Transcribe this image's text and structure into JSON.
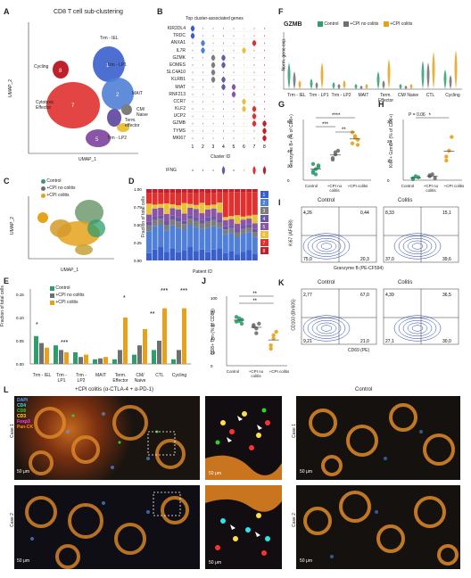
{
  "panels": {
    "A": {
      "label": "A",
      "title": "CD8 T cell sub-clustering",
      "xlabel": "UMAP_1",
      "ylabel": "UMAP_2",
      "xticks": [
        "-10",
        "0",
        "10"
      ],
      "yticks": [
        "-10",
        "0",
        "10"
      ],
      "clusters": [
        {
          "id": "1",
          "name": "Trm - IEL",
          "color": "#3a5fcd"
        },
        {
          "id": "2",
          "name": "Trm - LP1",
          "color": "#4f7fd6"
        },
        {
          "id": "3",
          "name": "MAIT",
          "color": "#7d7d7d"
        },
        {
          "id": "4",
          "name": "Term. effector",
          "color": "#6b56a8"
        },
        {
          "id": "5",
          "name": "Trm - LP2",
          "color": "#8a55a6"
        },
        {
          "id": "6",
          "name": "CM/ Naive",
          "color": "#e8c23a"
        },
        {
          "id": "7",
          "name": "Cytotoxic Effector",
          "color": "#e03030"
        },
        {
          "id": "8",
          "name": "Cycling",
          "color": "#c0202a"
        }
      ]
    },
    "B": {
      "label": "B",
      "title": "Top cluster-associated genes",
      "xlabel": "Cluster ID",
      "genes": [
        "KIR2DL4",
        "TRDC",
        "ANXA1",
        "IL7R",
        "GZMK",
        "EOMES",
        "SLC4A10",
        "KLRB1",
        "MIAT",
        "RNF213",
        "CCR7",
        "KLF2",
        "UCP2",
        "GZMB",
        "TYMS",
        "MKI67"
      ],
      "extra_gene": "IFNG",
      "cluster_ids": [
        "1",
        "2",
        "3",
        "4",
        "5",
        "6",
        "7",
        "8"
      ],
      "colors": [
        "#3a5fcd",
        "#4f7fd6",
        "#7d7d7d",
        "#6b56a8",
        "#8a55a6",
        "#e8c23a",
        "#e03030",
        "#c0202a"
      ]
    },
    "C": {
      "label": "C",
      "xlabel": "UMAP_1",
      "ylabel": "UMAP_2",
      "xticks": [
        "-10",
        "0",
        "10"
      ],
      "yticks": [
        "-10",
        "0",
        "10"
      ],
      "legend": [
        {
          "name": "Control",
          "color": "#2e9e6e"
        },
        {
          "name": "+CPI no colitis",
          "color": "#6f6f6f"
        },
        {
          "name": "+CPI colitis",
          "color": "#e6a21c"
        }
      ]
    },
    "D": {
      "label": "D",
      "ylabel": "Fraction of total cells",
      "xlabel": "Patient ID",
      "right_label": "Cluster ID",
      "yticks": [
        "0.00",
        "0.25",
        "0.50",
        "0.75",
        "1.00"
      ],
      "cluster_ids": [
        "1",
        "2",
        "3",
        "4",
        "5",
        "6",
        "7",
        "8"
      ]
    },
    "E": {
      "label": "E",
      "ylabel": "Fraction of total cells",
      "yticks": [
        "0.00",
        "0.05",
        "0.10",
        "0.15"
      ],
      "categories": [
        "Trm - IEL",
        "Trm - LP1",
        "Trm - LP2",
        "MAIT",
        "Term. Effector",
        "CM/ Naive",
        "CTL",
        "Cycling"
      ],
      "legend": [
        "Control",
        "+CPI no colitis",
        "+CPI colitis"
      ],
      "sig": [
        "*",
        "***",
        "*",
        "**",
        "***",
        "***"
      ]
    },
    "F": {
      "label": "F",
      "title": "GZMB",
      "ylabel": "Norm. gene exp.",
      "legend": [
        "Control",
        "+CPI no colitis",
        "+CPI colitis"
      ],
      "categories": [
        "Trm - IEL",
        "Trm - LP1",
        "Trm - LP2",
        "MAIT",
        "Term. Effector",
        "CM/ Naive",
        "CTL",
        "Cycling"
      ]
    },
    "G": {
      "label": "G",
      "ylabel": "Granzyme B+ (% of CD8+)",
      "yticks": [
        "0",
        "20",
        "40",
        "60",
        "80"
      ],
      "groups": [
        "Control",
        "+CPI no colitis",
        "+CPI colitis"
      ],
      "sig": [
        "****",
        "***",
        "**"
      ]
    },
    "H": {
      "label": "H",
      "ylabel": "Ki67+ GzmB+ (% of CD8+)",
      "yticks": [
        "0",
        "10",
        "20",
        "30"
      ],
      "groups": [
        "Control",
        "+CPI no colitis",
        "+CPI colitis"
      ],
      "sig": [
        "*"
      ],
      "pvalue": "P = 0.06"
    },
    "I": {
      "label": "I",
      "titles": [
        "Control",
        "Colitis"
      ],
      "ylabel": "Ki67 (AF488)",
      "xlabel": "Granzyme B (PE-CF594)",
      "control_quadrants": [
        "4,26",
        "0,44",
        "75,0",
        "20,3"
      ],
      "colitis_quadrants": [
        "8,33",
        "15,1",
        "37,0",
        "39,6"
      ]
    },
    "J": {
      "label": "J",
      "ylabel": "CD8+ Trm (% of CD8+)",
      "yticks": [
        "0",
        "20",
        "40",
        "60",
        "80",
        "100"
      ],
      "groups": [
        "Control",
        "+CPI no colitis",
        "+CPI colitis"
      ],
      "sig": [
        "**",
        "**"
      ]
    },
    "K": {
      "label": "K",
      "titles": [
        "Control",
        "Colitis"
      ],
      "ylabel": "CD103 (BV605)",
      "xlabel": "CD69 (PE)",
      "control_quadrants": [
        "2,77",
        "67,0",
        "9,21",
        "21,0"
      ],
      "colitis_quadrants": [
        "4,39",
        "36,5",
        "27,1",
        "30,0"
      ]
    },
    "L": {
      "label": "L",
      "left_title": "+CPI colitis (α-CTLA-4 + α-PD-1)",
      "right_title": "Control",
      "case_labels": [
        "Case 1",
        "Case 2"
      ],
      "stain_legend": [
        {
          "name": "DAPI",
          "color": "#5aa0ff"
        },
        {
          "name": "CD4",
          "color": "#2ee6e6"
        },
        {
          "name": "CD8",
          "color": "#30d030"
        },
        {
          "name": "CD3",
          "color": "#ffe040"
        },
        {
          "name": "Foxp3",
          "color": "#ff40ff"
        },
        {
          "name": "Pan-CK",
          "color": "#ff8c1a"
        }
      ],
      "scale_bars": [
        "50 μm",
        "50 μm",
        "50 μm",
        "50 μm",
        "50 μm",
        "50 μm"
      ]
    }
  }
}
